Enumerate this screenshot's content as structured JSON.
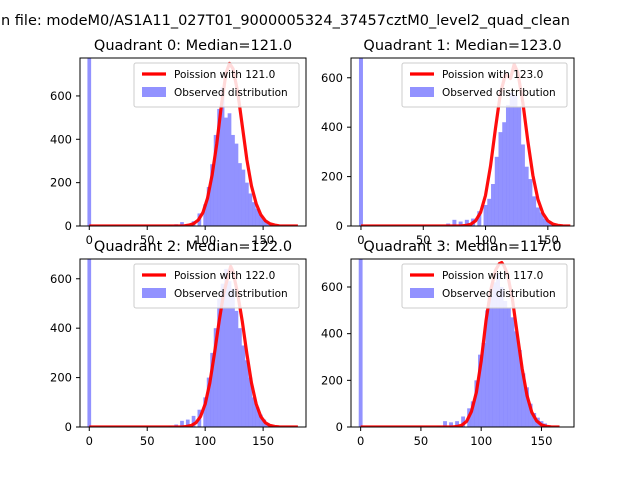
{
  "figure": {
    "suptitle": "n file: modeM0/AS1A11_027T01_9000005324_37457cztM0_level2_quad_clean"
  },
  "colors": {
    "histogram": "#7f7fff",
    "poisson": "#ff0000"
  },
  "chart_data": [
    {
      "type": "bar",
      "title": "Quadrant 0: Median=121.0",
      "xlim": [
        -8,
        187
      ],
      "ylim": [
        0,
        775
      ],
      "xticks": [
        "0",
        "50",
        "100",
        "150"
      ],
      "yticks": [
        "0",
        "200",
        "400",
        "600"
      ],
      "legend": {
        "placement": "upper right",
        "entries": [
          "Poission with 121.0",
          "Observed distribution"
        ]
      },
      "series": [
        {
          "name": "Observed distribution",
          "type": "histogram",
          "x": [
            0,
            65,
            70,
            75,
            80,
            85,
            90,
            95,
            100,
            103,
            106,
            109,
            112,
            115,
            118,
            121,
            124,
            127,
            130,
            133,
            136,
            139,
            142,
            145,
            148,
            151,
            154,
            157
          ],
          "values": [
            775,
            2,
            5,
            8,
            18,
            8,
            22,
            58,
            100,
            180,
            285,
            420,
            540,
            640,
            500,
            520,
            420,
            380,
            290,
            260,
            200,
            150,
            110,
            80,
            50,
            30,
            18,
            8
          ]
        },
        {
          "name": "Poission with 121.0",
          "type": "line",
          "x": [
            0,
            78,
            82,
            86,
            90,
            94,
            98,
            102,
            106,
            110,
            114,
            118,
            121,
            124,
            128,
            132,
            136,
            140,
            144,
            148,
            152,
            156,
            160,
            164,
            170,
            180
          ],
          "values": [
            0,
            0,
            1,
            4,
            11,
            27,
            62,
            128,
            235,
            380,
            557,
            705,
            750,
            725,
            621,
            462,
            305,
            184,
            103,
            52,
            24,
            10,
            4,
            1,
            0,
            0
          ]
        }
      ]
    },
    {
      "type": "bar",
      "title": "Quadrant 1: Median=123.0",
      "xlim": [
        -8,
        171
      ],
      "ylim": [
        0,
        680
      ],
      "xticks": [
        "0",
        "50",
        "100",
        "150"
      ],
      "yticks": [
        "0",
        "200",
        "400",
        "600"
      ],
      "legend": {
        "placement": "upper right",
        "entries": [
          "Poission with 123.0",
          "Observed distribution"
        ]
      },
      "series": [
        {
          "name": "Observed distribution",
          "type": "histogram",
          "x": [
            0,
            70,
            75,
            80,
            85,
            90,
            95,
            100,
            103,
            106,
            109,
            112,
            115,
            118,
            121,
            124,
            127,
            130,
            133,
            136,
            139,
            142,
            145,
            148,
            151,
            154
          ],
          "values": [
            680,
            10,
            25,
            18,
            25,
            30,
            60,
            85,
            110,
            170,
            280,
            380,
            420,
            490,
            540,
            530,
            480,
            330,
            240,
            190,
            120,
            75,
            55,
            30,
            15,
            8
          ]
        },
        {
          "name": "Poission with 123.0",
          "type": "line",
          "x": [
            0,
            80,
            84,
            88,
            92,
            96,
            100,
            104,
            108,
            112,
            116,
            120,
            123,
            126,
            130,
            134,
            138,
            142,
            146,
            150,
            154,
            158,
            162,
            168
          ],
          "values": [
            0,
            0,
            2,
            7,
            21,
            55,
            124,
            242,
            396,
            539,
            614,
            597,
            655,
            620,
            498,
            342,
            205,
            108,
            51,
            21,
            8,
            3,
            1,
            0
          ]
        }
      ]
    },
    {
      "type": "bar",
      "title": "Quadrant 2: Median=122.0",
      "xlim": [
        -8,
        187
      ],
      "ylim": [
        0,
        680
      ],
      "xticks": [
        "0",
        "50",
        "100",
        "150"
      ],
      "yticks": [
        "0",
        "200",
        "400",
        "600"
      ],
      "legend": {
        "placement": "upper right",
        "entries": [
          "Poission with 122.0",
          "Observed distribution"
        ]
      },
      "series": [
        {
          "name": "Observed distribution",
          "type": "histogram",
          "x": [
            0,
            70,
            75,
            80,
            85,
            90,
            95,
            100,
            103,
            106,
            109,
            112,
            115,
            118,
            121,
            124,
            127,
            130,
            133,
            136,
            139,
            142,
            145,
            148,
            151,
            154,
            157
          ],
          "values": [
            680,
            5,
            10,
            25,
            30,
            45,
            70,
            120,
            200,
            300,
            400,
            520,
            580,
            640,
            590,
            560,
            470,
            400,
            330,
            270,
            200,
            120,
            80,
            50,
            30,
            15,
            8
          ]
        },
        {
          "name": "Poission with 122.0",
          "type": "line",
          "x": [
            0,
            80,
            84,
            88,
            92,
            96,
            100,
            104,
            108,
            112,
            116,
            120,
            122,
            124,
            128,
            132,
            136,
            140,
            144,
            148,
            152,
            156,
            160,
            164,
            170,
            180
          ],
          "values": [
            0,
            0,
            2,
            6,
            17,
            42,
            93,
            178,
            296,
            427,
            541,
            615,
            650,
            628,
            541,
            427,
            296,
            178,
            93,
            42,
            17,
            6,
            2,
            1,
            0,
            0
          ]
        }
      ]
    },
    {
      "type": "bar",
      "title": "Quadrant 3: Median=117.0",
      "xlim": [
        -8,
        177
      ],
      "ylim": [
        0,
        720
      ],
      "xticks": [
        "0",
        "50",
        "100",
        "150"
      ],
      "yticks": [
        "0",
        "200",
        "400",
        "600"
      ],
      "legend": {
        "placement": "upper right",
        "entries": [
          "Poission with 117.0",
          "Observed distribution"
        ]
      },
      "series": [
        {
          "name": "Observed distribution",
          "type": "histogram",
          "x": [
            0,
            65,
            70,
            75,
            80,
            85,
            90,
            93,
            96,
            99,
            102,
            105,
            108,
            111,
            114,
            117,
            120,
            123,
            126,
            129,
            132,
            135,
            138,
            141,
            144,
            147,
            150,
            153,
            156
          ],
          "values": [
            720,
            5,
            25,
            20,
            25,
            45,
            80,
            110,
            200,
            310,
            360,
            500,
            560,
            620,
            660,
            600,
            540,
            510,
            470,
            410,
            330,
            230,
            170,
            100,
            60,
            40,
            25,
            15,
            5
          ]
        },
        {
          "name": "Poission with 117.0",
          "type": "line",
          "x": [
            0,
            76,
            80,
            84,
            88,
            92,
            96,
            100,
            104,
            108,
            112,
            115,
            117,
            119,
            122,
            126,
            130,
            134,
            138,
            142,
            146,
            150,
            154,
            158,
            165
          ],
          "values": [
            0,
            0,
            2,
            8,
            25,
            67,
            149,
            283,
            455,
            589,
            673,
            700,
            705,
            690,
            652,
            545,
            397,
            249,
            135,
            63,
            26,
            9,
            3,
            1,
            0
          ]
        }
      ]
    }
  ]
}
